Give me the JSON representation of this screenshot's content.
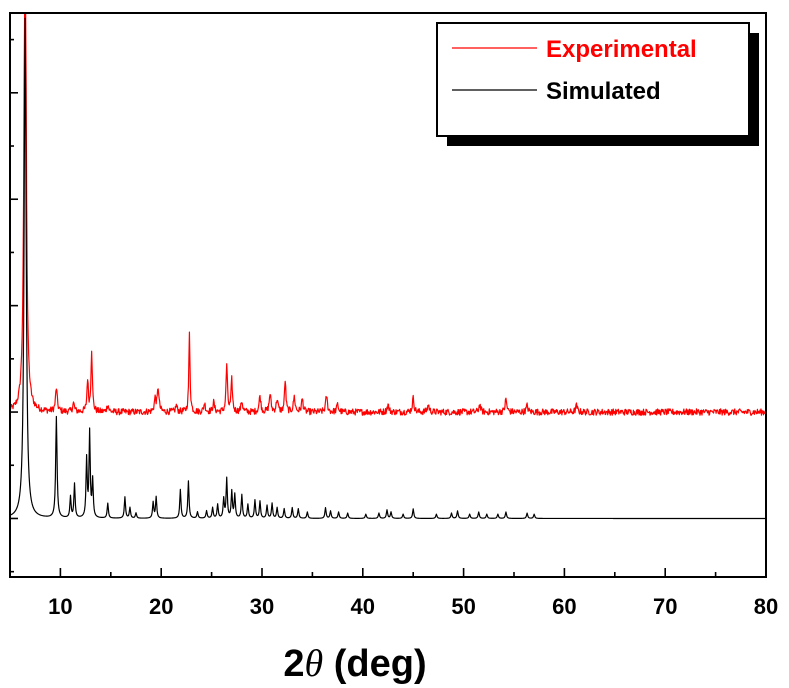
{
  "chart_data": {
    "type": "line",
    "title": "",
    "xlabel": {
      "prefix": "2",
      "symbol": "θ",
      "suffix": " (deg)"
    },
    "ylabel": "",
    "xlim": [
      5,
      80
    ],
    "ylim": [
      -0.55,
      4.75
    ],
    "x_ticks": [
      10,
      20,
      30,
      40,
      50,
      60,
      70,
      80
    ],
    "x_tick_labels": [
      "10",
      "20",
      "30",
      "40",
      "50",
      "60",
      "70",
      "80"
    ],
    "y_ticks_shown_as_labels": false,
    "grid": false,
    "legend": {
      "placement": "top-right",
      "shadow": true
    },
    "series": [
      {
        "name": "Experimental",
        "color": "#ff0000",
        "baseline": 1.0,
        "noise": 0.03,
        "peaks": [
          [
            6.5,
            5.2,
            0.12
          ],
          [
            9.6,
            0.22,
            0.1
          ],
          [
            11.3,
            0.08,
            0.1
          ],
          [
            12.7,
            0.3,
            0.08
          ],
          [
            13.1,
            0.58,
            0.08
          ],
          [
            14.7,
            0.07,
            0.1
          ],
          [
            19.4,
            0.12,
            0.1
          ],
          [
            19.7,
            0.22,
            0.1
          ],
          [
            21.5,
            0.06,
            0.1
          ],
          [
            22.8,
            0.74,
            0.07
          ],
          [
            24.3,
            0.08,
            0.1
          ],
          [
            25.2,
            0.09,
            0.1
          ],
          [
            26.5,
            0.45,
            0.08
          ],
          [
            27.0,
            0.3,
            0.08
          ],
          [
            28.0,
            0.1,
            0.1
          ],
          [
            29.8,
            0.15,
            0.1
          ],
          [
            30.8,
            0.17,
            0.1
          ],
          [
            31.5,
            0.12,
            0.1
          ],
          [
            32.3,
            0.3,
            0.08
          ],
          [
            33.2,
            0.14,
            0.1
          ],
          [
            34.0,
            0.12,
            0.1
          ],
          [
            36.4,
            0.15,
            0.1
          ],
          [
            37.5,
            0.07,
            0.1
          ],
          [
            42.5,
            0.07,
            0.1
          ],
          [
            45.0,
            0.13,
            0.1
          ],
          [
            46.5,
            0.07,
            0.1
          ],
          [
            51.6,
            0.07,
            0.1
          ],
          [
            54.2,
            0.12,
            0.1
          ],
          [
            56.3,
            0.06,
            0.1
          ],
          [
            61.2,
            0.06,
            0.1
          ]
        ]
      },
      {
        "name": "Simulated",
        "color": "#000000",
        "baseline": 0.0,
        "noise": 0.0,
        "peaks": [
          [
            6.5,
            4.7,
            0.12
          ],
          [
            9.6,
            0.95,
            0.08
          ],
          [
            11.0,
            0.2,
            0.07
          ],
          [
            11.4,
            0.32,
            0.07
          ],
          [
            12.6,
            0.55,
            0.07
          ],
          [
            12.9,
            0.8,
            0.07
          ],
          [
            13.2,
            0.35,
            0.07
          ],
          [
            14.7,
            0.14,
            0.07
          ],
          [
            16.4,
            0.2,
            0.07
          ],
          [
            16.9,
            0.1,
            0.07
          ],
          [
            17.5,
            0.05,
            0.07
          ],
          [
            19.2,
            0.15,
            0.07
          ],
          [
            19.5,
            0.2,
            0.07
          ],
          [
            21.9,
            0.27,
            0.07
          ],
          [
            22.7,
            0.35,
            0.07
          ],
          [
            23.6,
            0.06,
            0.07
          ],
          [
            24.5,
            0.07,
            0.07
          ],
          [
            25.1,
            0.1,
            0.07
          ],
          [
            25.6,
            0.13,
            0.07
          ],
          [
            26.2,
            0.18,
            0.07
          ],
          [
            26.5,
            0.37,
            0.07
          ],
          [
            27.0,
            0.25,
            0.07
          ],
          [
            27.3,
            0.22,
            0.07
          ],
          [
            28.0,
            0.22,
            0.07
          ],
          [
            28.6,
            0.13,
            0.07
          ],
          [
            29.3,
            0.17,
            0.07
          ],
          [
            29.8,
            0.16,
            0.07
          ],
          [
            30.5,
            0.12,
            0.07
          ],
          [
            31.0,
            0.14,
            0.07
          ],
          [
            31.5,
            0.1,
            0.07
          ],
          [
            32.2,
            0.09,
            0.07
          ],
          [
            33.0,
            0.1,
            0.07
          ],
          [
            33.6,
            0.09,
            0.07
          ],
          [
            34.5,
            0.06,
            0.07
          ],
          [
            36.3,
            0.1,
            0.07
          ],
          [
            36.8,
            0.07,
            0.07
          ],
          [
            37.6,
            0.06,
            0.07
          ],
          [
            38.5,
            0.05,
            0.07
          ],
          [
            40.3,
            0.04,
            0.07
          ],
          [
            41.6,
            0.05,
            0.07
          ],
          [
            42.4,
            0.08,
            0.07
          ],
          [
            42.8,
            0.06,
            0.07
          ],
          [
            44.0,
            0.04,
            0.07
          ],
          [
            45.0,
            0.09,
            0.07
          ],
          [
            47.3,
            0.04,
            0.07
          ],
          [
            48.8,
            0.05,
            0.07
          ],
          [
            49.4,
            0.07,
            0.07
          ],
          [
            50.6,
            0.04,
            0.07
          ],
          [
            51.5,
            0.06,
            0.07
          ],
          [
            52.3,
            0.04,
            0.07
          ],
          [
            53.4,
            0.04,
            0.07
          ],
          [
            54.2,
            0.06,
            0.07
          ],
          [
            56.3,
            0.05,
            0.07
          ],
          [
            57.0,
            0.04,
            0.07
          ]
        ]
      }
    ]
  }
}
